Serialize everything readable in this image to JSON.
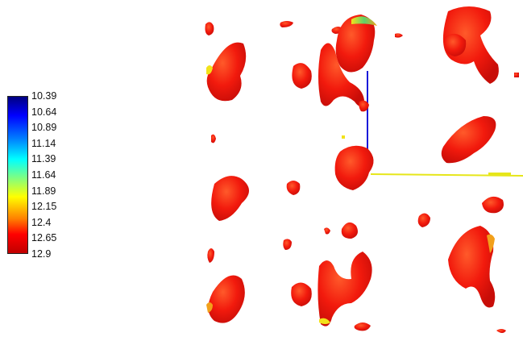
{
  "legend": {
    "ticks": [
      "10.39",
      "10.64",
      "10.89",
      "11.14",
      "11.39",
      "11.64",
      "11.89",
      "12.15",
      "12.4",
      "12.65",
      "12.9"
    ]
  },
  "colors": {
    "surface_red": "#ff1a0d",
    "highlight_orange": "#ff7a1a",
    "edge_yellow": "#f2e21a",
    "edge_green": "#5fd06a",
    "axis_blue": "#1a1ad9",
    "axis_yellow": "#e6e61a"
  },
  "scene": {
    "description_icon": "isosurface-icon"
  }
}
